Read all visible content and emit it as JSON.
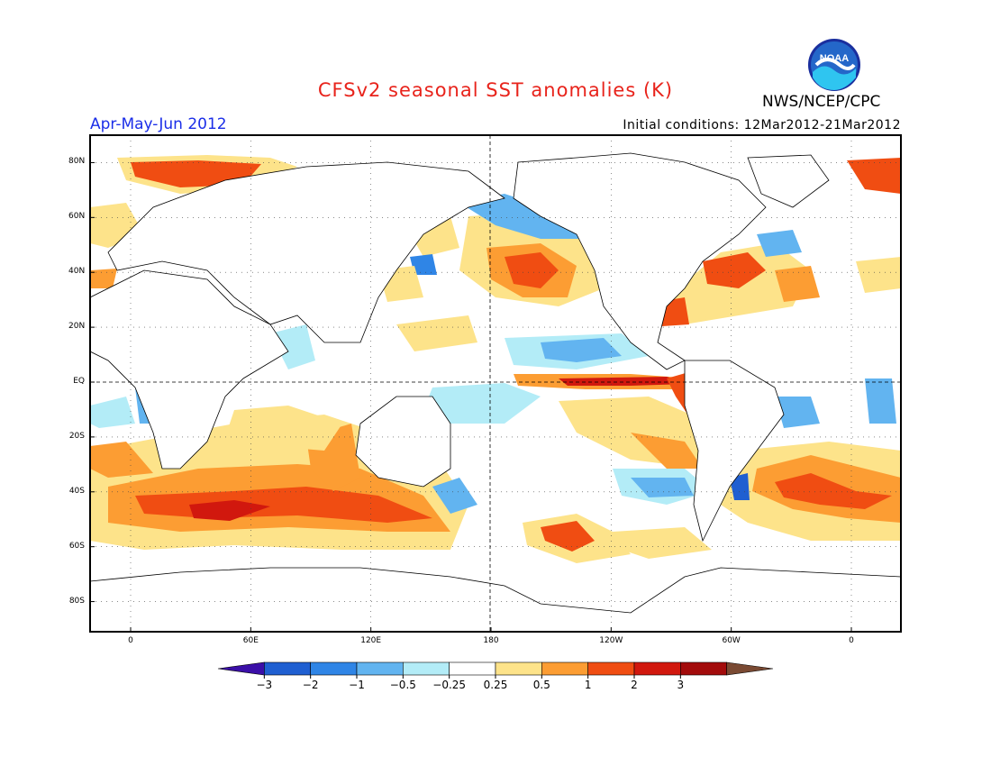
{
  "header": {
    "title": "CFSv2 seasonal SST anomalies (K)",
    "agency": "NWS/NCEP/CPC",
    "period": "Apr-May-Jun 2012",
    "initial_conditions": "Initial conditions: 12Mar2012-21Mar2012",
    "logo_text": "NOAA"
  },
  "axes": {
    "lat_labels": [
      "80N",
      "60N",
      "40N",
      "20N",
      "EQ",
      "20S",
      "40S",
      "60S",
      "80S"
    ],
    "lat_values": [
      80,
      60,
      40,
      20,
      0,
      -20,
      -40,
      -60,
      -80
    ],
    "lon_labels": [
      "0",
      "60E",
      "120E",
      "180",
      "120W",
      "60W",
      "0"
    ],
    "lon_values": [
      0,
      60,
      120,
      180,
      240,
      300,
      360
    ]
  },
  "colorbar": {
    "labels": [
      "-3",
      "-2",
      "-1",
      "-0.5",
      "-0.25",
      "0.25",
      "0.5",
      "1",
      "2",
      "3"
    ],
    "colors": [
      "#3b0fa8",
      "#1f5fd1",
      "#2f85e6",
      "#62b4f0",
      "#b3ecf7",
      "#ffffff",
      "#fde38a",
      "#fc9d33",
      "#f04d12",
      "#d1180e",
      "#a30b0b",
      "#7a4a33"
    ]
  },
  "anomalies": {
    "units": "K"
  }
}
